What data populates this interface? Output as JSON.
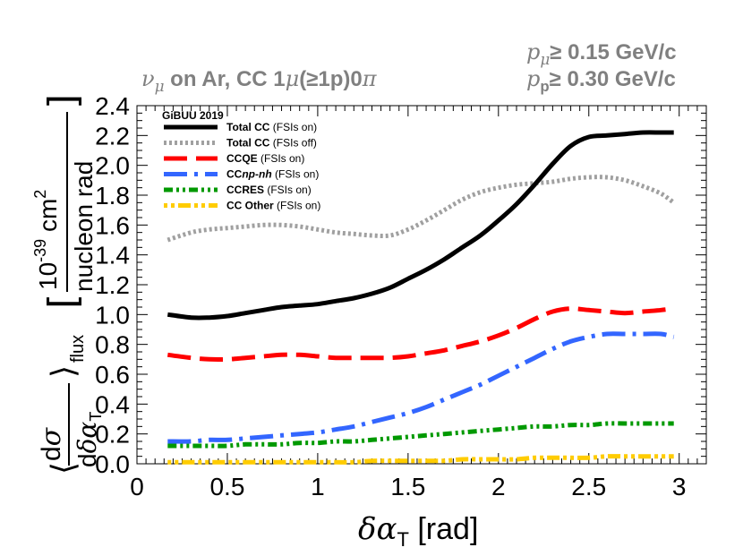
{
  "chart_data": {
    "type": "line",
    "title": "ν_μ on Ar, CC 1μ(≥1p)0π",
    "title_parts": {
      "nu": "ν",
      "nu_sub": "μ",
      "on_ar": " on Ar, CC 1",
      "mu": "μ",
      "ge1p": "(≥1p)0",
      "pi": "π"
    },
    "cuts": {
      "muon": {
        "p": "p",
        "sub": "μ",
        "text": "≥ 0.15 GeV/c"
      },
      "proton": {
        "p": "p",
        "sub": "p",
        "text": "≥ 0.30 GeV/c"
      }
    },
    "xlabel": "δα_T [rad]",
    "xlabel_parts": {
      "delta": "δ",
      "alpha": "α",
      "sub": "T",
      "unit": " [rad]"
    },
    "ylabel": "⟨dσ/dδα_T⟩_flux [10^-39 cm^2 / nucleon rad]",
    "ylabel_parts": {
      "d": "d",
      "sigma": "σ",
      "dd": "d",
      "delta": "δ",
      "alpha": "α",
      "t": "T",
      "flux": "flux",
      "scale": "10",
      "exp": "-39",
      "cm": " cm",
      "sq": "2",
      "denom": "nucleon rad"
    },
    "xlim": [
      0,
      3.15
    ],
    "ylim": [
      0,
      2.4
    ],
    "xticks": [
      "0",
      "0.5",
      "1",
      "1.5",
      "2",
      "2.5",
      "3"
    ],
    "xtick_values": [
      0,
      0.5,
      1,
      1.5,
      2,
      2.5,
      3
    ],
    "yticks": [
      "0.0",
      "0.2",
      "0.4",
      "0.6",
      "0.8",
      "1.0",
      "1.2",
      "1.4",
      "1.6",
      "1.8",
      "2.0",
      "2.2",
      "2.4"
    ],
    "ytick_values": [
      0,
      0.2,
      0.4,
      0.6,
      0.8,
      1.0,
      1.2,
      1.4,
      1.6,
      1.8,
      2.0,
      2.2,
      2.4
    ],
    "legend_header": "GiBUU 2019",
    "legend_position": "top-left",
    "x": [
      0.17,
      0.3,
      0.4,
      0.5,
      0.6,
      0.7,
      0.8,
      0.9,
      1.0,
      1.1,
      1.2,
      1.3,
      1.4,
      1.5,
      1.6,
      1.7,
      1.8,
      1.9,
      2.0,
      2.1,
      2.2,
      2.3,
      2.4,
      2.5,
      2.6,
      2.7,
      2.8,
      2.9,
      2.97
    ],
    "series": [
      {
        "name": "Total CC",
        "note": " (FSIs on)",
        "color": "#000000",
        "style": "solid",
        "values": [
          1.0,
          0.98,
          0.98,
          0.99,
          1.01,
          1.03,
          1.05,
          1.06,
          1.07,
          1.09,
          1.11,
          1.14,
          1.18,
          1.24,
          1.3,
          1.37,
          1.45,
          1.53,
          1.63,
          1.74,
          1.87,
          2.01,
          2.13,
          2.19,
          2.2,
          2.21,
          2.22,
          2.22,
          2.22
        ]
      },
      {
        "name": "Total CC",
        "note": " (FSIs off)",
        "color": "#a0a0a0",
        "style": "dotted",
        "values": [
          1.5,
          1.55,
          1.57,
          1.58,
          1.59,
          1.6,
          1.6,
          1.59,
          1.57,
          1.55,
          1.54,
          1.53,
          1.53,
          1.57,
          1.63,
          1.7,
          1.77,
          1.82,
          1.85,
          1.87,
          1.88,
          1.89,
          1.91,
          1.92,
          1.92,
          1.9,
          1.86,
          1.81,
          1.75
        ]
      },
      {
        "name": "CCQE",
        "note": " (FSIs on)",
        "color": "#ff0000",
        "style": "dashed",
        "values": [
          0.73,
          0.71,
          0.7,
          0.7,
          0.71,
          0.72,
          0.73,
          0.73,
          0.72,
          0.71,
          0.71,
          0.71,
          0.71,
          0.72,
          0.74,
          0.76,
          0.79,
          0.82,
          0.86,
          0.91,
          0.97,
          1.02,
          1.04,
          1.03,
          1.02,
          1.01,
          1.02,
          1.03,
          1.04
        ]
      },
      {
        "name": "CC",
        "name_italic": "np-nh",
        "note": " (FSIs on)",
        "color": "#3366ff",
        "style": "dashdot",
        "values": [
          0.15,
          0.15,
          0.16,
          0.16,
          0.17,
          0.18,
          0.19,
          0.2,
          0.21,
          0.23,
          0.25,
          0.28,
          0.31,
          0.34,
          0.38,
          0.43,
          0.48,
          0.53,
          0.59,
          0.65,
          0.71,
          0.77,
          0.82,
          0.85,
          0.87,
          0.87,
          0.87,
          0.87,
          0.85
        ]
      },
      {
        "name": "CCRES",
        "note": " (FSIs on)",
        "color": "#009900",
        "style": "dashdotdot",
        "values": [
          0.12,
          0.12,
          0.12,
          0.12,
          0.13,
          0.13,
          0.13,
          0.14,
          0.14,
          0.15,
          0.15,
          0.16,
          0.17,
          0.18,
          0.19,
          0.2,
          0.21,
          0.22,
          0.23,
          0.24,
          0.25,
          0.25,
          0.26,
          0.26,
          0.27,
          0.27,
          0.27,
          0.27,
          0.27
        ]
      },
      {
        "name": "CC Other",
        "note": " (FSIs on)",
        "color": "#ffcc00",
        "style": "dotdash",
        "values": [
          0.01,
          0.01,
          0.01,
          0.01,
          0.01,
          0.01,
          0.01,
          0.01,
          0.01,
          0.01,
          0.01,
          0.02,
          0.02,
          0.02,
          0.02,
          0.02,
          0.03,
          0.03,
          0.03,
          0.03,
          0.04,
          0.04,
          0.04,
          0.04,
          0.05,
          0.05,
          0.05,
          0.05,
          0.05
        ]
      }
    ]
  }
}
